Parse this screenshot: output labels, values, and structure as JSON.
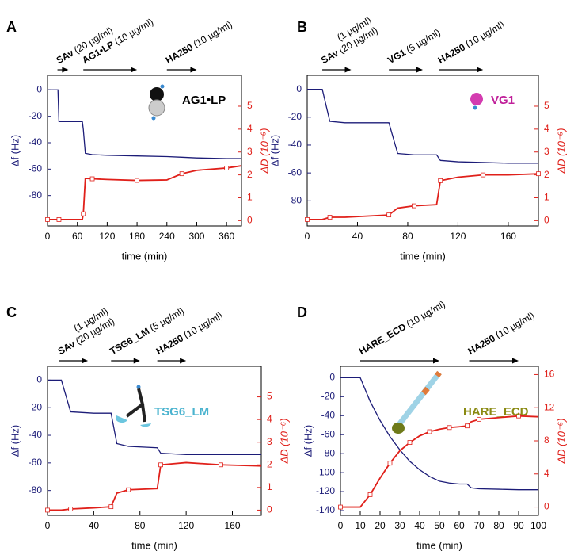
{
  "chart_data": [
    {
      "type": "line",
      "panel": "A",
      "xlabel": "time (min)",
      "ylabel": "Δf (Hz)",
      "y2label": "ΔD (10⁻⁶)",
      "molecule": {
        "text": "AG1•LP",
        "color": "#000000"
      },
      "annotations": [
        {
          "label": "SAv",
          "details": [
            "(20 µg/ml)"
          ],
          "start": 20,
          "end": 42
        },
        {
          "label": "AG1•LP",
          "details": [
            "(10 µg/ml)"
          ],
          "start": 72,
          "end": 180
        },
        {
          "label": "HA250",
          "details": [
            "(10 µg/ml)"
          ],
          "start": 240,
          "end": 300
        }
      ],
      "x": [
        0,
        21,
        23,
        70,
        72,
        76,
        90,
        120,
        180,
        240,
        270,
        300,
        360,
        390
      ],
      "xlim": [
        0,
        390
      ],
      "xticks": [
        0,
        60,
        120,
        180,
        240,
        300,
        360
      ],
      "ylim": [
        -103,
        11
      ],
      "yticks": [
        0,
        -20,
        -40,
        -60,
        -80
      ],
      "y2lim": [
        -0.23,
        6.35
      ],
      "y2ticks": [
        0,
        1,
        2,
        3,
        4,
        5
      ],
      "series": [
        {
          "name": "Δf",
          "color": "#1c1c78",
          "values": [
            0,
            0,
            -24,
            -24,
            -30,
            -48,
            -49,
            -49.5,
            -50,
            -50.5,
            -51,
            -51.5,
            -52,
            -52
          ]
        },
        {
          "name": "ΔD",
          "color": "#e0201a",
          "axis": "y2",
          "values": [
            0.05,
            0.05,
            0.05,
            0.05,
            0.3,
            1.85,
            1.83,
            1.8,
            1.76,
            1.78,
            2.05,
            2.2,
            2.3,
            2.4
          ]
        }
      ]
    },
    {
      "type": "line",
      "panel": "B",
      "xlabel": "time (min)",
      "ylabel": "Δf (Hz)",
      "y2label": "ΔD (10⁻⁶)",
      "molecule": {
        "text": "VG1",
        "color": "#c0209a"
      },
      "annotations": [
        {
          "label": "SAv",
          "details": [
            "(1 µg/ml)",
            "(20 µg/ml)"
          ],
          "start": 12,
          "end": 35
        },
        {
          "label": "VG1",
          "details": [
            "(5 µg/ml)"
          ],
          "start": 65,
          "end": 92
        },
        {
          "label": "HA250",
          "details": [
            "(10 µg/ml)"
          ],
          "start": 105,
          "end": 140
        }
      ],
      "x": [
        0,
        12,
        18,
        30,
        65,
        72,
        85,
        103,
        106,
        120,
        140,
        160,
        184
      ],
      "xlim": [
        0,
        184
      ],
      "xticks": [
        0,
        40,
        80,
        120,
        160
      ],
      "ylim": [
        -98,
        10
      ],
      "yticks": [
        0,
        -20,
        -40,
        -60,
        -80
      ],
      "y2lim": [
        -0.23,
        6.35
      ],
      "y2ticks": [
        0,
        1,
        2,
        3,
        4,
        5
      ],
      "series": [
        {
          "name": "Δf",
          "color": "#1c1c78",
          "values": [
            0,
            0,
            -23,
            -24,
            -24,
            -46,
            -47,
            -47,
            -51,
            -52,
            -52.5,
            -53,
            -53
          ]
        },
        {
          "name": "ΔD",
          "color": "#e0201a",
          "axis": "y2",
          "values": [
            0.05,
            0.05,
            0.15,
            0.15,
            0.25,
            0.55,
            0.65,
            0.7,
            1.75,
            1.9,
            2.0,
            2.0,
            2.05
          ]
        }
      ]
    },
    {
      "type": "line",
      "panel": "C",
      "xlabel": "time (min)",
      "ylabel": "Δf (Hz)",
      "y2label": "ΔD (10⁻⁶)",
      "molecule": {
        "text": "TSG6_LM",
        "color": "#4ab3cf"
      },
      "annotations": [
        {
          "label": "SAv",
          "details": [
            "(1 µg/ml)",
            "(20 µg/ml)"
          ],
          "start": 10,
          "end": 35
        },
        {
          "label": "TSG6_LM",
          "details": [
            "(5 µg/ml)"
          ],
          "start": 55,
          "end": 80
        },
        {
          "label": "HA250",
          "details": [
            "(10 µg/ml)"
          ],
          "start": 95,
          "end": 120
        }
      ],
      "x": [
        0,
        12,
        20,
        40,
        55,
        60,
        70,
        95,
        98,
        120,
        150,
        185
      ],
      "xlim": [
        0,
        185
      ],
      "xticks": [
        0,
        40,
        80,
        120,
        160
      ],
      "ylim": [
        -98,
        10
      ],
      "yticks": [
        0,
        -20,
        -40,
        -60,
        -80
      ],
      "y2lim": [
        -0.23,
        6.35
      ],
      "y2ticks": [
        0,
        1,
        2,
        3,
        4,
        5
      ],
      "series": [
        {
          "name": "Δf",
          "color": "#1c1c78",
          "values": [
            0,
            0,
            -23,
            -24,
            -24,
            -46,
            -48,
            -49,
            -53,
            -54,
            -54,
            -54
          ]
        },
        {
          "name": "ΔD",
          "color": "#e0201a",
          "axis": "y2",
          "values": [
            0,
            0,
            0.05,
            0.1,
            0.15,
            0.75,
            0.9,
            0.95,
            2.0,
            2.1,
            2.0,
            1.95
          ]
        }
      ]
    },
    {
      "type": "line",
      "panel": "D",
      "xlabel": "time (min)",
      "ylabel": "Δf (Hz)",
      "y2label": "ΔD (10⁻⁶)",
      "molecule": {
        "text": "HARE_ECD",
        "color": "#8a8a12"
      },
      "annotations": [
        {
          "label": "HARE_ECD",
          "details": [
            "(10 µg/ml)"
          ],
          "start": 10,
          "end": 50
        },
        {
          "label": "HA250",
          "details": [
            "(10 µg/ml)"
          ],
          "start": 65,
          "end": 90
        }
      ],
      "x": [
        0,
        10,
        15,
        20,
        25,
        30,
        35,
        40,
        45,
        50,
        55,
        60,
        64,
        66,
        70,
        80,
        90,
        100
      ],
      "xlim": [
        0,
        100
      ],
      "xticks": [
        0,
        10,
        20,
        30,
        40,
        50,
        60,
        70,
        80,
        90,
        100
      ],
      "ylim": [
        -145,
        12
      ],
      "yticks": [
        0,
        -20,
        -40,
        -60,
        -80,
        -100,
        -120,
        -140
      ],
      "y2lim": [
        -1,
        17
      ],
      "y2ticks": [
        0,
        4,
        8,
        12,
        16
      ],
      "series": [
        {
          "name": "Δf",
          "color": "#1c1c78",
          "values": [
            0,
            0,
            -25,
            -45,
            -62,
            -76,
            -88,
            -97,
            -104,
            -109,
            -111,
            -112,
            -112,
            -116,
            -117,
            -117.5,
            -118,
            -118
          ]
        },
        {
          "name": "ΔD",
          "color": "#e0201a",
          "axis": "y2",
          "values": [
            0,
            0,
            1.5,
            3.5,
            5.3,
            6.8,
            7.8,
            8.6,
            9.1,
            9.4,
            9.6,
            9.7,
            9.8,
            10.3,
            10.6,
            10.8,
            11,
            10.9
          ]
        }
      ]
    }
  ]
}
